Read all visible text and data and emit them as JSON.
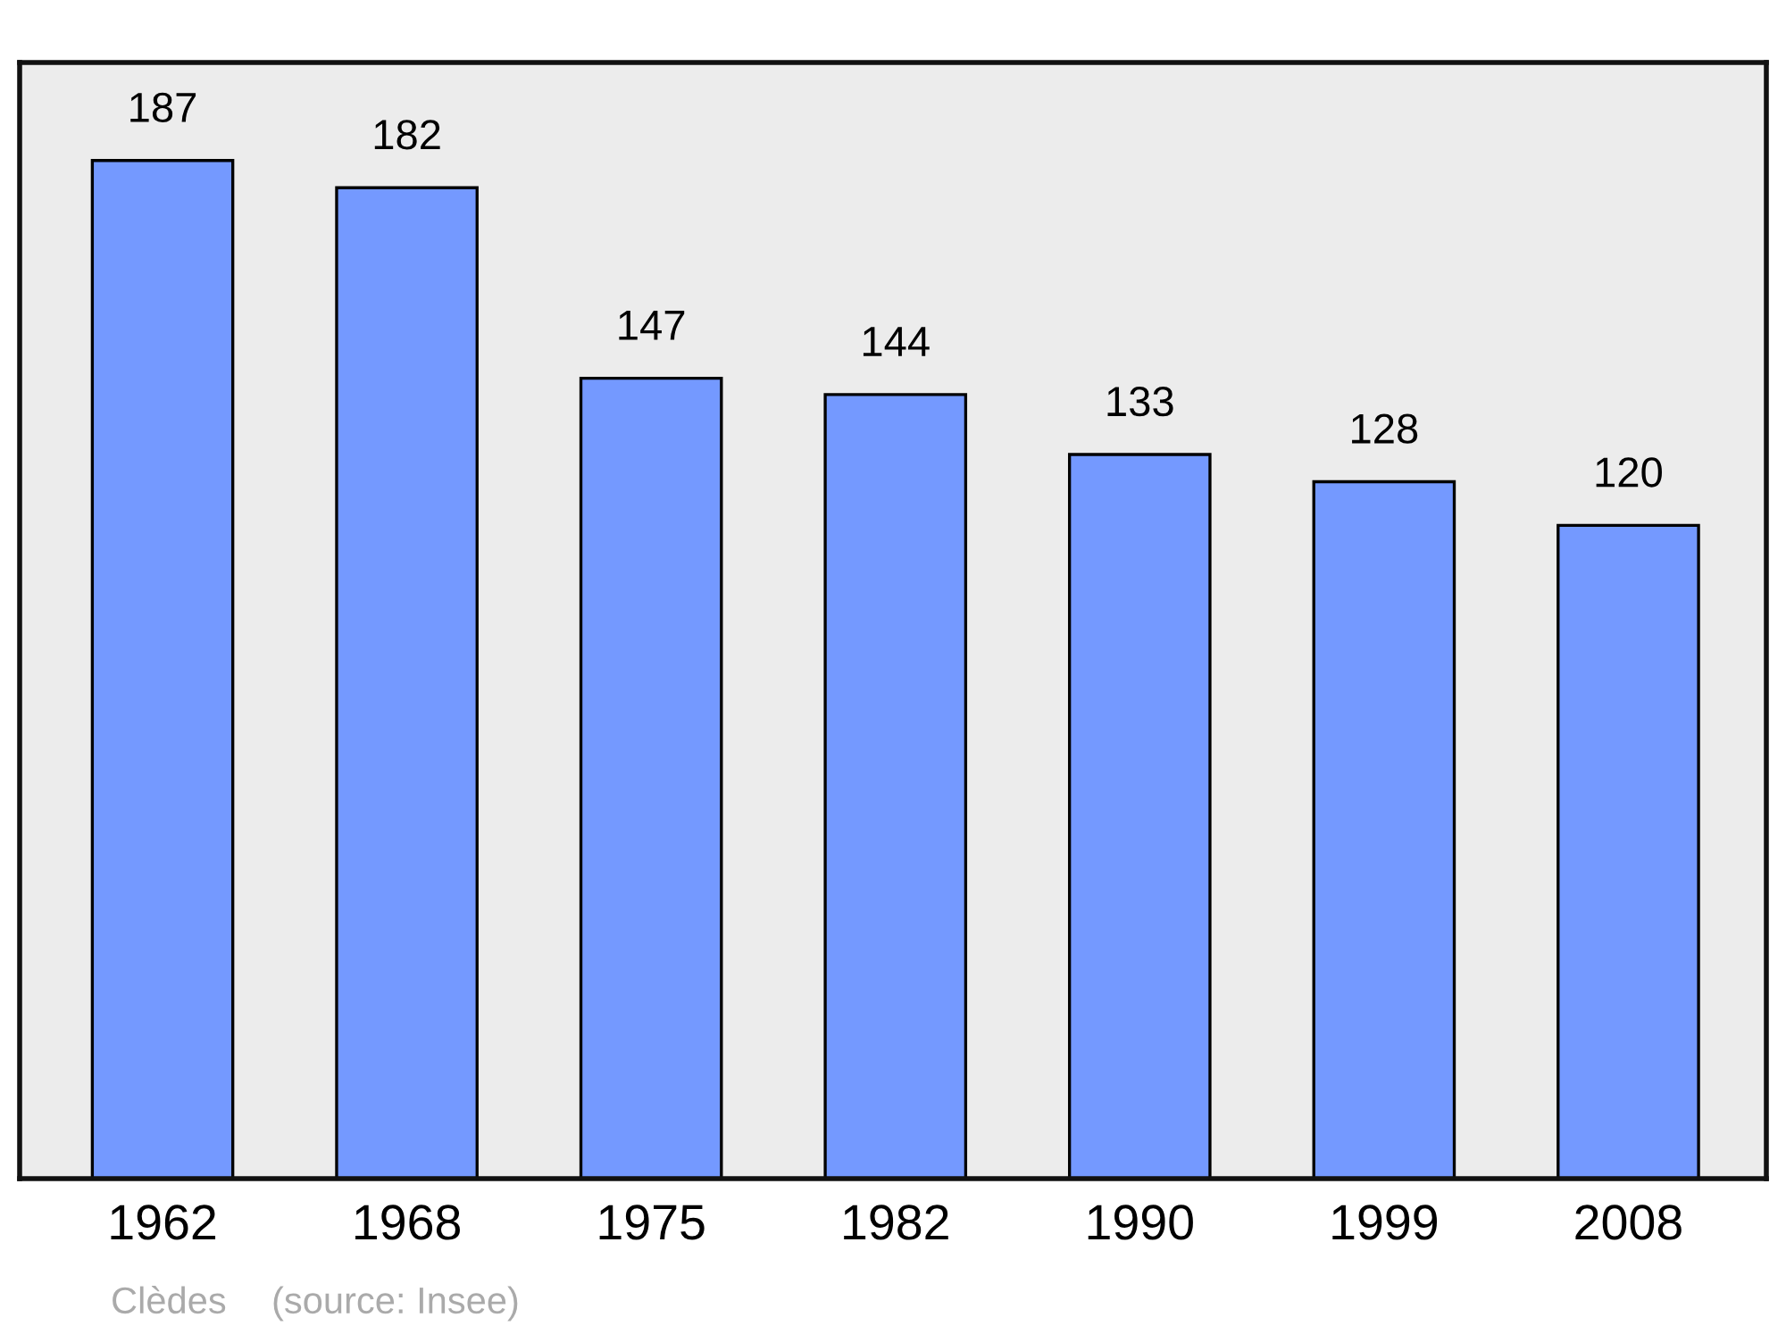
{
  "chart_data": {
    "type": "bar",
    "categories": [
      "1962",
      "1968",
      "1975",
      "1982",
      "1990",
      "1999",
      "2008"
    ],
    "values": [
      187,
      182,
      147,
      144,
      133,
      128,
      120
    ],
    "color": "#7499ff",
    "ylim": [
      0,
      205
    ],
    "tick_labels": "x",
    "data_labels": true,
    "grid": false,
    "legend": false,
    "annotations": [
      "Clèdes",
      "(source: Insee)"
    ]
  }
}
